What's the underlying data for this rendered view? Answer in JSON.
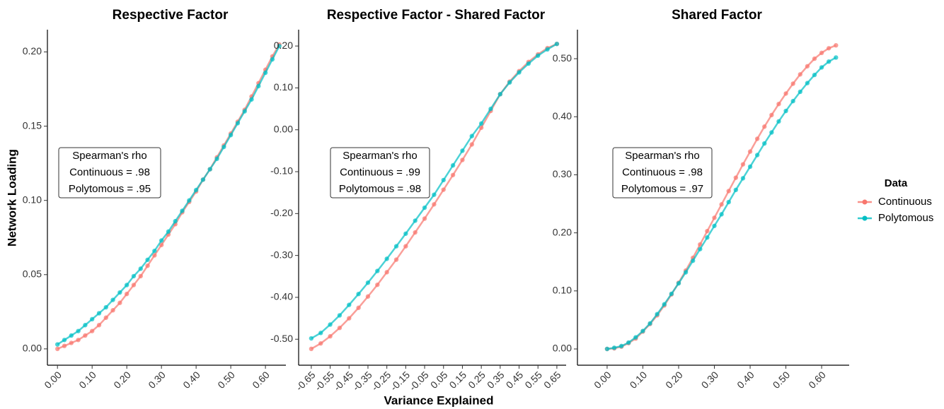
{
  "legend_title": "Data",
  "chart_data": [
    {
      "type": "line",
      "title": "Respective Factor",
      "y_label": "Network Loading",
      "annotation": [
        "Spearman's rho",
        "Continuous = .98",
        "Polytomous = .95"
      ],
      "x": [
        0,
        0.02,
        0.04,
        0.06,
        0.08,
        0.1,
        0.12,
        0.14,
        0.16,
        0.18,
        0.2,
        0.22,
        0.24,
        0.26,
        0.28,
        0.3,
        0.32,
        0.34,
        0.36,
        0.38,
        0.4,
        0.42,
        0.44,
        0.46,
        0.48,
        0.5,
        0.52,
        0.54,
        0.56,
        0.58,
        0.6,
        0.62,
        0.64
      ],
      "series": [
        {
          "name": "Continuous",
          "color": "#F8766D",
          "values": [
            0,
            0.002,
            0.004,
            0.006,
            0.009,
            0.012,
            0.016,
            0.021,
            0.026,
            0.031,
            0.037,
            0.043,
            0.049,
            0.056,
            0.063,
            0.07,
            0.077,
            0.084,
            0.092,
            0.099,
            0.106,
            0.114,
            0.121,
            0.129,
            0.137,
            0.145,
            0.153,
            0.161,
            0.17,
            0.179,
            0.188,
            0.197,
            0.205
          ]
        },
        {
          "name": "Polytomous",
          "color": "#00BFC4",
          "values": [
            0.003,
            0.006,
            0.009,
            0.012,
            0.016,
            0.02,
            0.024,
            0.028,
            0.033,
            0.038,
            0.043,
            0.049,
            0.054,
            0.06,
            0.066,
            0.073,
            0.079,
            0.086,
            0.093,
            0.1,
            0.107,
            0.114,
            0.121,
            0.128,
            0.136,
            0.144,
            0.152,
            0.16,
            0.168,
            0.177,
            0.186,
            0.195,
            0.204
          ]
        }
      ],
      "xlim": [
        -0.029,
        0.659
      ],
      "ylim": [
        -0.011,
        0.215
      ],
      "xticks": [
        {
          "value": 0,
          "label": "0.00"
        },
        {
          "value": 0.1,
          "label": "0.10"
        },
        {
          "value": 0.2,
          "label": "0.20"
        },
        {
          "value": 0.3,
          "label": "0.30"
        },
        {
          "value": 0.4,
          "label": "0.40"
        },
        {
          "value": 0.5,
          "label": "0.50"
        },
        {
          "value": 0.6,
          "label": "0.60"
        }
      ],
      "yticks": [
        {
          "value": 0,
          "label": "0.00"
        },
        {
          "value": 0.05,
          "label": "0.05"
        },
        {
          "value": 0.1,
          "label": "0.10"
        },
        {
          "value": 0.15,
          "label": "0.15"
        },
        {
          "value": 0.2,
          "label": "0.20"
        }
      ]
    },
    {
      "type": "line",
      "title": "Respective Factor - Shared Factor",
      "x_label": "Variance Explained",
      "annotation": [
        "Spearman's rho",
        "Continuous = .99",
        "Polytomous = .98"
      ],
      "x": [
        -0.65,
        -0.6,
        -0.55,
        -0.5,
        -0.45,
        -0.4,
        -0.35,
        -0.3,
        -0.25,
        -0.2,
        -0.15,
        -0.1,
        -0.05,
        0,
        0.05,
        0.1,
        0.15,
        0.2,
        0.25,
        0.3,
        0.35,
        0.4,
        0.45,
        0.5,
        0.55,
        0.6,
        0.65
      ],
      "series": [
        {
          "name": "Continuous",
          "color": "#F8766D",
          "values": [
            -0.523,
            -0.51,
            -0.493,
            -0.473,
            -0.45,
            -0.425,
            -0.398,
            -0.37,
            -0.34,
            -0.31,
            -0.278,
            -0.245,
            -0.212,
            -0.178,
            -0.143,
            -0.108,
            -0.072,
            -0.035,
            0.005,
            0.045,
            0.085,
            0.115,
            0.14,
            0.162,
            0.18,
            0.195,
            0.205
          ]
        },
        {
          "name": "Polytomous",
          "color": "#00BFC4",
          "values": [
            -0.498,
            -0.485,
            -0.465,
            -0.443,
            -0.418,
            -0.392,
            -0.365,
            -0.337,
            -0.308,
            -0.278,
            -0.248,
            -0.217,
            -0.186,
            -0.155,
            -0.12,
            -0.085,
            -0.05,
            -0.015,
            0.015,
            0.05,
            0.085,
            0.113,
            0.137,
            0.158,
            0.177,
            0.192,
            0.205
          ]
        }
      ],
      "xlim": [
        -0.717,
        0.699
      ],
      "ylim": [
        -0.562,
        0.239
      ],
      "xticks": [
        -0.65,
        -0.55,
        -0.45,
        -0.35,
        -0.25,
        -0.15,
        -0.05,
        0.05,
        0.15,
        0.25,
        0.35,
        0.45,
        0.55,
        0.65
      ],
      "yticks": [
        {
          "value": -0.5,
          "label": "-0.50"
        },
        {
          "value": -0.4,
          "label": "-0.40"
        },
        {
          "value": -0.3,
          "label": "-0.30"
        },
        {
          "value": -0.2,
          "label": "-0.20"
        },
        {
          "value": -0.1,
          "label": "-0.10"
        },
        {
          "value": 0,
          "label": "0.00"
        },
        {
          "value": 0.1,
          "label": "0.10"
        },
        {
          "value": 0.2,
          "label": "0.20"
        }
      ]
    },
    {
      "type": "line",
      "title": "Shared Factor",
      "annotation": [
        "Spearman's rho",
        "Continuous = .98",
        "Polytomous = .97"
      ],
      "x": [
        0,
        0.02,
        0.04,
        0.06,
        0.08,
        0.1,
        0.12,
        0.14,
        0.16,
        0.18,
        0.2,
        0.22,
        0.24,
        0.26,
        0.28,
        0.3,
        0.32,
        0.34,
        0.36,
        0.38,
        0.4,
        0.42,
        0.44,
        0.46,
        0.48,
        0.5,
        0.52,
        0.54,
        0.56,
        0.58,
        0.6,
        0.62,
        0.64
      ],
      "series": [
        {
          "name": "Continuous",
          "color": "#F8766D",
          "values": [
            0,
            0.001,
            0.004,
            0.01,
            0.018,
            0.03,
            0.043,
            0.058,
            0.075,
            0.094,
            0.114,
            0.135,
            0.157,
            0.18,
            0.203,
            0.226,
            0.249,
            0.272,
            0.295,
            0.318,
            0.34,
            0.362,
            0.383,
            0.403,
            0.422,
            0.44,
            0.457,
            0.473,
            0.487,
            0.5,
            0.51,
            0.518,
            0.523
          ]
        },
        {
          "name": "Polytomous",
          "color": "#00BFC4",
          "values": [
            0,
            0.002,
            0.005,
            0.011,
            0.02,
            0.031,
            0.044,
            0.06,
            0.077,
            0.095,
            0.113,
            0.132,
            0.152,
            0.172,
            0.192,
            0.212,
            0.232,
            0.253,
            0.274,
            0.294,
            0.314,
            0.334,
            0.354,
            0.373,
            0.392,
            0.41,
            0.427,
            0.443,
            0.458,
            0.472,
            0.485,
            0.495,
            0.502
          ]
        }
      ],
      "xlim": [
        -0.083,
        0.677
      ],
      "ylim": [
        -0.028,
        0.55
      ],
      "xticks": [
        {
          "value": 0,
          "label": "0.00"
        },
        {
          "value": 0.1,
          "label": "0.10"
        },
        {
          "value": 0.2,
          "label": "0.20"
        },
        {
          "value": 0.3,
          "label": "0.30"
        },
        {
          "value": 0.4,
          "label": "0.40"
        },
        {
          "value": 0.5,
          "label": "0.50"
        },
        {
          "value": 0.6,
          "label": "0.60"
        }
      ],
      "yticks": [
        {
          "value": 0,
          "label": "0.00"
        },
        {
          "value": 0.1,
          "label": "0.10"
        },
        {
          "value": 0.2,
          "label": "0.20"
        },
        {
          "value": 0.3,
          "label": "0.30"
        },
        {
          "value": 0.4,
          "label": "0.40"
        },
        {
          "value": 0.5,
          "label": "0.50"
        }
      ]
    }
  ]
}
